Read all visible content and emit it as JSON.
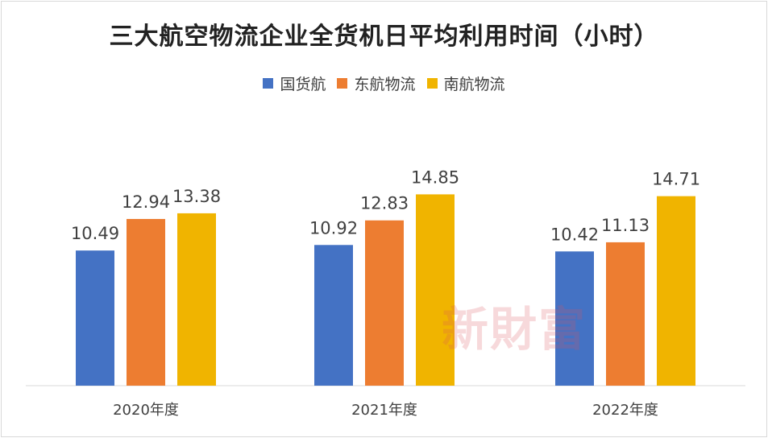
{
  "colors": {
    "gj": "#4472C4",
    "df": "#ED7D31",
    "nf": "#F0B400"
  },
  "watermark": "新財富",
  "chart_data": {
    "type": "bar",
    "title": "三大航空物流企业全货机日平均利用时间（小时）",
    "categories": [
      "2020年度",
      "2021年度",
      "2022年度"
    ],
    "series": [
      {
        "name": "国货航",
        "values": [
          10.49,
          10.92,
          10.42
        ]
      },
      {
        "name": "东航物流",
        "values": [
          12.94,
          12.83,
          11.13
        ]
      },
      {
        "name": "南航物流",
        "values": [
          13.38,
          14.85,
          14.71
        ]
      }
    ],
    "ylim": [
      0,
      18
    ],
    "grid": false,
    "legend": "top-center"
  }
}
